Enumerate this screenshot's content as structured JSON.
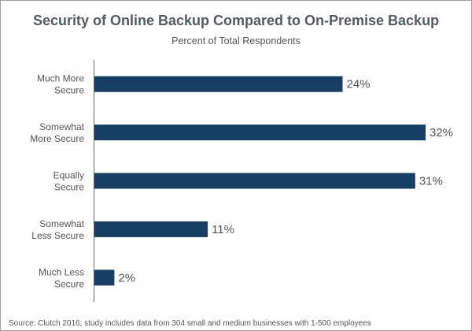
{
  "chart_data": {
    "type": "bar",
    "orientation": "horizontal",
    "title": "Security of Online Backup Compared to On-Premise Backup",
    "subtitle": "Percent of Total Respondents",
    "categories": [
      [
        "Much More",
        "Secure"
      ],
      [
        "Somewhat",
        "More Secure"
      ],
      [
        "Equally",
        "Secure"
      ],
      [
        "Somewhat",
        "Less Secure"
      ],
      [
        "Much Less",
        "Secure"
      ]
    ],
    "values": [
      24,
      32,
      31,
      11,
      2
    ],
    "value_labels": [
      "24%",
      "32%",
      "31%",
      "11%",
      "2%"
    ],
    "xlim": [
      0,
      32
    ],
    "grid": false,
    "bar_color": "#173f66",
    "source": "Source: Clutch 2016; study includes data from 304 small and medium businesses with 1-500 employees"
  }
}
